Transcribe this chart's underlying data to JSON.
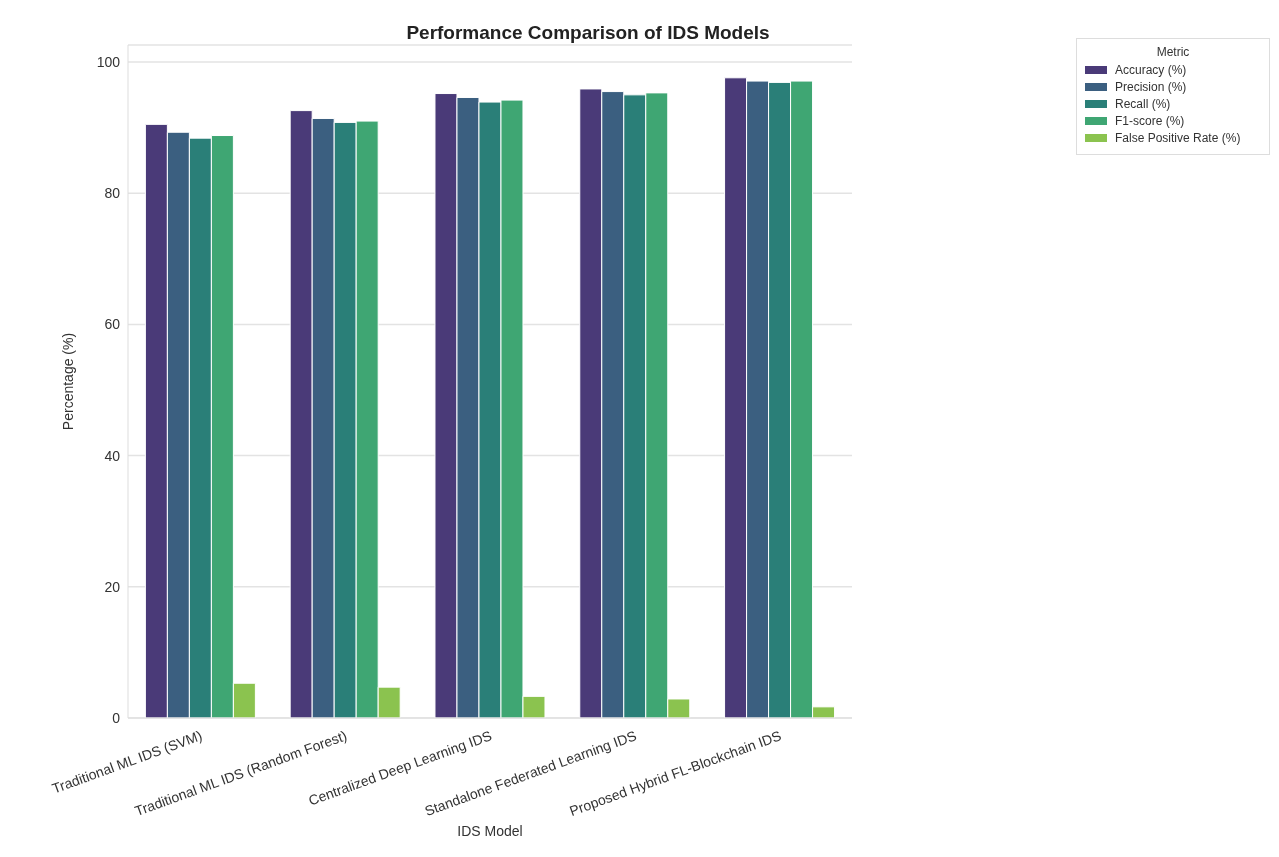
{
  "chart_data": {
    "type": "bar",
    "title": "Performance Comparison of IDS Models",
    "xlabel": "IDS Model",
    "ylabel": "Percentage (%)",
    "legend_title": "Metric",
    "categories": [
      "Traditional ML IDS (SVM)",
      "Traditional ML IDS (Random Forest)",
      "Centralized Deep Learning IDS",
      "Standalone Federated Learning IDS",
      "Proposed Hybrid FL-Blockchain IDS"
    ],
    "series": [
      {
        "name": "Accuracy (%)",
        "color": "#4a3a78",
        "values": [
          90.5,
          92.6,
          95.2,
          95.9,
          97.6
        ]
      },
      {
        "name": "Precision (%)",
        "color": "#3b5f80",
        "values": [
          89.3,
          91.4,
          94.6,
          95.5,
          97.1
        ]
      },
      {
        "name": "Recall (%)",
        "color": "#2a7f78",
        "values": [
          88.4,
          90.8,
          93.9,
          95.0,
          96.9
        ]
      },
      {
        "name": "F1-score (%)",
        "color": "#3fa673",
        "values": [
          88.8,
          91.0,
          94.2,
          95.3,
          97.1
        ]
      },
      {
        "name": "False Positive Rate (%)",
        "color": "#8bc34f",
        "values": [
          5.3,
          4.7,
          3.3,
          2.9,
          1.7
        ]
      }
    ],
    "ylim": [
      0,
      102.6
    ],
    "yticks": [
      0,
      20,
      40,
      60,
      80,
      100
    ],
    "grid": "y",
    "legend": "top right"
  }
}
